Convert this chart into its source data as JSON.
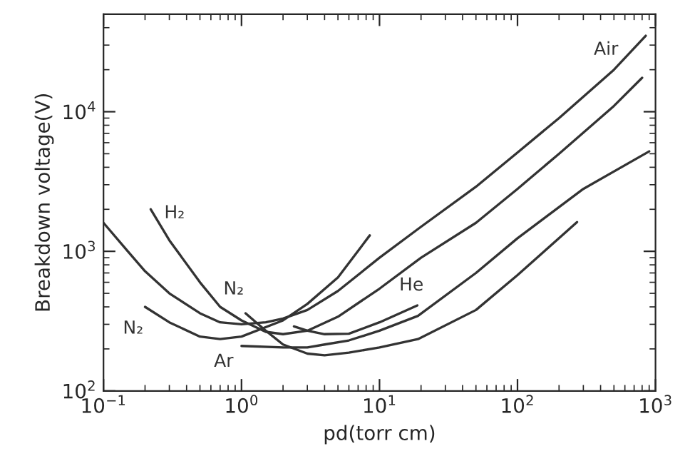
{
  "chart_data": {
    "type": "line",
    "xlabel": "pd(torr cm)",
    "ylabel": "Breakdown voltage(V)",
    "log": "xy",
    "grid": false,
    "marker": "none",
    "line_style": "solid",
    "xlim": [
      0.1,
      1000
    ],
    "ylim": [
      100,
      50000
    ],
    "xticks": [
      {
        "value": 0.1,
        "label": "10$^{−1}$"
      },
      {
        "value": 1,
        "label": "10$^{0}$"
      },
      {
        "value": 10,
        "label": "10$^{1}$"
      },
      {
        "value": 100,
        "label": "10$^{2}$"
      },
      {
        "value": 1000,
        "label": "10$^{3}$"
      }
    ],
    "yticks": [
      {
        "value": 100,
        "label": "10$^{2}$"
      },
      {
        "value": 1000,
        "label": "10$^{3}$"
      },
      {
        "value": 10000,
        "label": "10$^{4}$"
      }
    ],
    "series": [
      {
        "name": "Air",
        "color": "#333333",
        "x": [
          0.1,
          0.15,
          0.2,
          0.3,
          0.5,
          0.7,
          1,
          1.5,
          2,
          3,
          5,
          10,
          20,
          50,
          100,
          200,
          500,
          850
        ],
        "values": [
          1600,
          1000,
          720,
          500,
          360,
          310,
          300,
          310,
          330,
          380,
          520,
          900,
          1500,
          2900,
          5100,
          9000,
          20000,
          35000
        ]
      },
      {
        "name": "H₂",
        "color": "#333333",
        "x": [
          0.22,
          0.3,
          0.5,
          0.7,
          1,
          1.5,
          2,
          3,
          5,
          10,
          20,
          50,
          100,
          200,
          500,
          800
        ],
        "values": [
          2000,
          1200,
          600,
          400,
          320,
          265,
          255,
          270,
          340,
          540,
          900,
          1600,
          2800,
          5000,
          11000,
          17500
        ]
      },
      {
        "name": "N₂",
        "color": "#333333",
        "x": [
          0.2,
          0.3,
          0.5,
          0.7,
          1,
          2,
          3,
          5,
          8.5
        ],
        "values": [
          400,
          310,
          245,
          235,
          245,
          320,
          420,
          650,
          1300
        ]
      },
      {
        "name": "N₂",
        "color": "#333333",
        "x": [
          1.07,
          1.5,
          2,
          3,
          4,
          6,
          10,
          19,
          50,
          100,
          270
        ],
        "values": [
          360,
          270,
          215,
          185,
          180,
          188,
          205,
          235,
          380,
          675,
          1620
        ]
      },
      {
        "name": "Ar",
        "color": "#333333",
        "x": [
          1,
          2,
          3,
          4,
          6,
          10,
          19,
          50,
          100,
          300,
          900
        ],
        "values": [
          210,
          205,
          205,
          215,
          230,
          270,
          345,
          700,
          1240,
          2800,
          5200
        ]
      },
      {
        "name": "He",
        "color": "#333333",
        "x": [
          2.4,
          3,
          4,
          6,
          10,
          18.8
        ],
        "values": [
          290,
          270,
          255,
          257,
          310,
          410
        ]
      }
    ]
  }
}
